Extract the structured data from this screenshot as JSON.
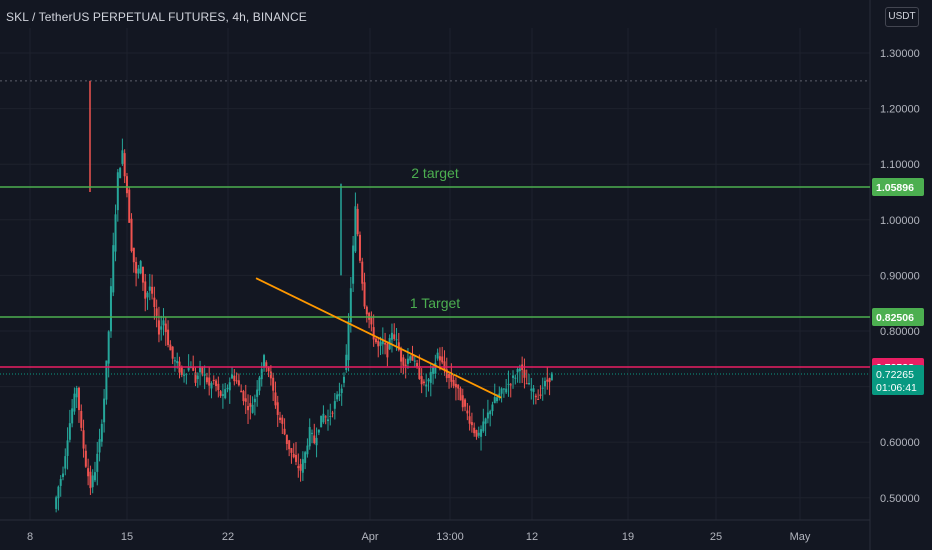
{
  "header": {
    "symbol_title": "SKL / TetherUS PERPETUAL FUTURES, 4h, BINANCE",
    "currency_button": "USDT"
  },
  "colors": {
    "background": "#131722",
    "up": "#26a69a",
    "down": "#ef5350",
    "target_line": "#4caf50",
    "resistance_line": "#e91e63",
    "trendline": "#ff9800",
    "current_price": "#089981"
  },
  "chart_data": {
    "type": "candlestick",
    "ylim": [
      0.46,
      1.345
    ],
    "y_ticks": [
      "1.30000",
      "1.20000",
      "1.10000",
      "1.00000",
      "0.90000",
      "0.80000",
      "0.70000",
      "0.60000",
      "0.50000"
    ],
    "x_ticks": [
      "8",
      "15",
      "22",
      "Apr",
      "13:00",
      "12",
      "19",
      "25",
      "May"
    ],
    "series": [
      {
        "kind": "close_path_4h",
        "values": [
          0.48,
          0.52,
          0.55,
          0.61,
          0.66,
          0.7,
          0.62,
          0.56,
          0.52,
          0.55,
          0.6,
          0.68,
          0.8,
          0.95,
          1.08,
          1.12,
          1.05,
          0.95,
          0.9,
          0.92,
          0.86,
          0.88,
          0.84,
          0.8,
          0.82,
          0.78,
          0.75,
          0.74,
          0.72,
          0.73,
          0.74,
          0.71,
          0.73,
          0.72,
          0.7,
          0.71,
          0.69,
          0.68,
          0.7,
          0.72,
          0.71,
          0.69,
          0.67,
          0.66,
          0.68,
          0.72,
          0.75,
          0.73,
          0.69,
          0.65,
          0.63,
          0.6,
          0.58,
          0.56,
          0.55,
          0.58,
          0.62,
          0.6,
          0.63,
          0.65,
          0.64,
          0.66,
          0.68,
          0.7,
          0.75,
          0.88,
          1.02,
          0.93,
          0.85,
          0.82,
          0.79,
          0.77,
          0.78,
          0.76,
          0.8,
          0.78,
          0.75,
          0.74,
          0.76,
          0.74,
          0.72,
          0.7,
          0.71,
          0.73,
          0.76,
          0.74,
          0.72,
          0.71,
          0.7,
          0.68,
          0.66,
          0.64,
          0.62,
          0.61,
          0.63,
          0.65,
          0.67,
          0.68,
          0.69,
          0.7,
          0.71,
          0.72,
          0.74,
          0.71,
          0.7,
          0.69,
          0.68,
          0.7,
          0.71,
          0.72
        ]
      }
    ],
    "horizontal_lines": [
      {
        "price": 1.05896,
        "label": "1.05896",
        "note": "2 target",
        "color": "#4caf50"
      },
      {
        "price": 0.82506,
        "label": "0.82506",
        "note": "1 Target",
        "color": "#4caf50"
      },
      {
        "price": 0.73528,
        "label": "0.73528",
        "note": "",
        "color": "#e91e63"
      }
    ],
    "dashed_line_price": 1.25,
    "trendline": {
      "from_index": 44,
      "from_price": 0.895,
      "to_index": 90,
      "to_price": 0.68
    },
    "current_price": {
      "label": "0.72265",
      "countdown": "01:06:41",
      "price": 0.72265
    }
  }
}
